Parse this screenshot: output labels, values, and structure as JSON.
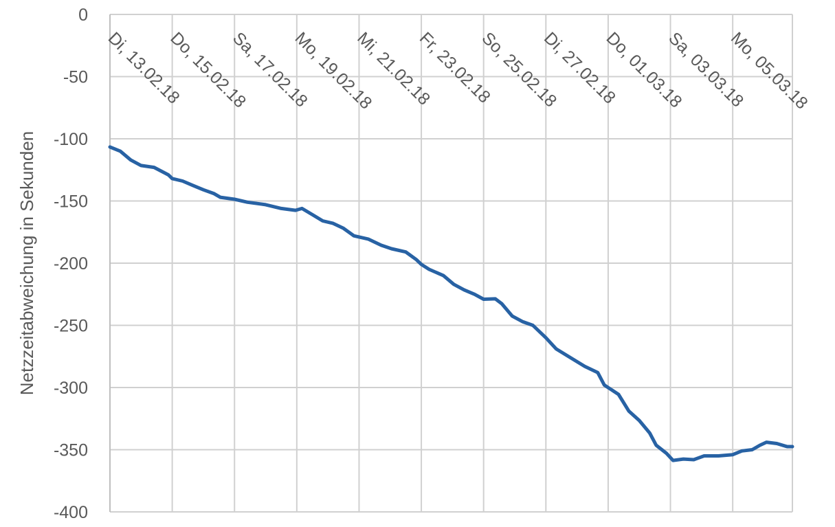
{
  "chart_data": {
    "type": "line",
    "title": "",
    "xlabel": "",
    "ylabel": "Netzzeitabweichung in Sekunden",
    "ylim": [
      -400,
      0
    ],
    "yticks": [
      0,
      -50,
      -100,
      -150,
      -200,
      -250,
      -300,
      -350,
      -400
    ],
    "xlim": [
      "2018-02-13T00:00",
      "2018-03-06T22:00"
    ],
    "xtick_labels": [
      {
        "date": "2018-02-13",
        "label": "Di, 13.02.18"
      },
      {
        "date": "2018-02-15",
        "label": "Do, 15.02.18"
      },
      {
        "date": "2018-02-17",
        "label": "Sa, 17.02.18"
      },
      {
        "date": "2018-02-19",
        "label": "Mo, 19.02.18"
      },
      {
        "date": "2018-02-21",
        "label": "Mi, 21.02.18"
      },
      {
        "date": "2018-02-23",
        "label": "Fr, 23.02.18"
      },
      {
        "date": "2018-02-25",
        "label": "So, 25.02.18"
      },
      {
        "date": "2018-02-27",
        "label": "Di, 27.02.18"
      },
      {
        "date": "2018-03-01",
        "label": "Do, 01.03.18"
      },
      {
        "date": "2018-03-03",
        "label": "Sa, 03.03.18"
      },
      {
        "date": "2018-03-05",
        "label": "Mo, 05.03.18"
      }
    ],
    "grid": true,
    "line_color": "#2862A4",
    "grid_color": "#D0D0D0",
    "series": [
      {
        "x": [
          "2018-02-13T00:00",
          "2018-02-13T08:00",
          "2018-02-13T16:00",
          "2018-02-14T00:00",
          "2018-02-14T10:00",
          "2018-02-14T21:00",
          "2018-02-15T00:00",
          "2018-02-15T08:00",
          "2018-02-15T16:00",
          "2018-02-16T00:00",
          "2018-02-16T08:00",
          "2018-02-16T13:00",
          "2018-02-17T00:00",
          "2018-02-17T10:00",
          "2018-02-18T00:00",
          "2018-02-18T12:00",
          "2018-02-18T23:00",
          "2018-02-19T04:00",
          "2018-02-19T12:00",
          "2018-02-19T20:00",
          "2018-02-20T04:00",
          "2018-02-20T12:00",
          "2018-02-20T20:00",
          "2018-02-21T07:00",
          "2018-02-21T17:00",
          "2018-02-22T01:00",
          "2018-02-22T12:00",
          "2018-02-22T20:00",
          "2018-02-23T00:00",
          "2018-02-23T06:00",
          "2018-02-23T17:00",
          "2018-02-24T01:00",
          "2018-02-24T09:00",
          "2018-02-24T17:00",
          "2018-02-25T00:00",
          "2018-02-25T09:00",
          "2018-02-25T14:00",
          "2018-02-25T22:00",
          "2018-02-26T06:00",
          "2018-02-26T14:00",
          "2018-02-27T00:00",
          "2018-02-27T08:00",
          "2018-02-27T19:00",
          "2018-02-28T06:00",
          "2018-02-28T16:00",
          "2018-02-28T21:00",
          "2018-03-01T08:00",
          "2018-03-01T16:00",
          "2018-03-02T00:00",
          "2018-03-02T08:00",
          "2018-03-02T13:00",
          "2018-03-02T21:00",
          "2018-03-03T02:00",
          "2018-03-03T10:00",
          "2018-03-03T18:00",
          "2018-03-04T02:00",
          "2018-03-04T13:00",
          "2018-03-05T00:00",
          "2018-03-05T07:00",
          "2018-03-05T15:00",
          "2018-03-05T21:00",
          "2018-03-06T02:00",
          "2018-03-06T10:00",
          "2018-03-06T18:00",
          "2018-03-06T22:00"
        ],
        "y": [
          -106.6,
          -110,
          -117,
          -121.5,
          -123,
          -129,
          -132,
          -134,
          -137.5,
          -141,
          -144,
          -147,
          -148.6,
          -151,
          -153,
          -156,
          -157.5,
          -156,
          -161,
          -166,
          -168,
          -172,
          -178,
          -180.6,
          -185.6,
          -188.4,
          -191,
          -197,
          -201,
          -205,
          -210,
          -217,
          -221.5,
          -225,
          -229,
          -228.7,
          -232.6,
          -242.5,
          -247,
          -250,
          -260,
          -269,
          -276,
          -283,
          -288,
          -298,
          -305.5,
          -319,
          -326.5,
          -336.5,
          -346.4,
          -353,
          -358.6,
          -357.5,
          -358,
          -355,
          -355,
          -354,
          -351,
          -350,
          -346.4,
          -344,
          -345,
          -347.5,
          -347.5
        ]
      }
    ]
  }
}
